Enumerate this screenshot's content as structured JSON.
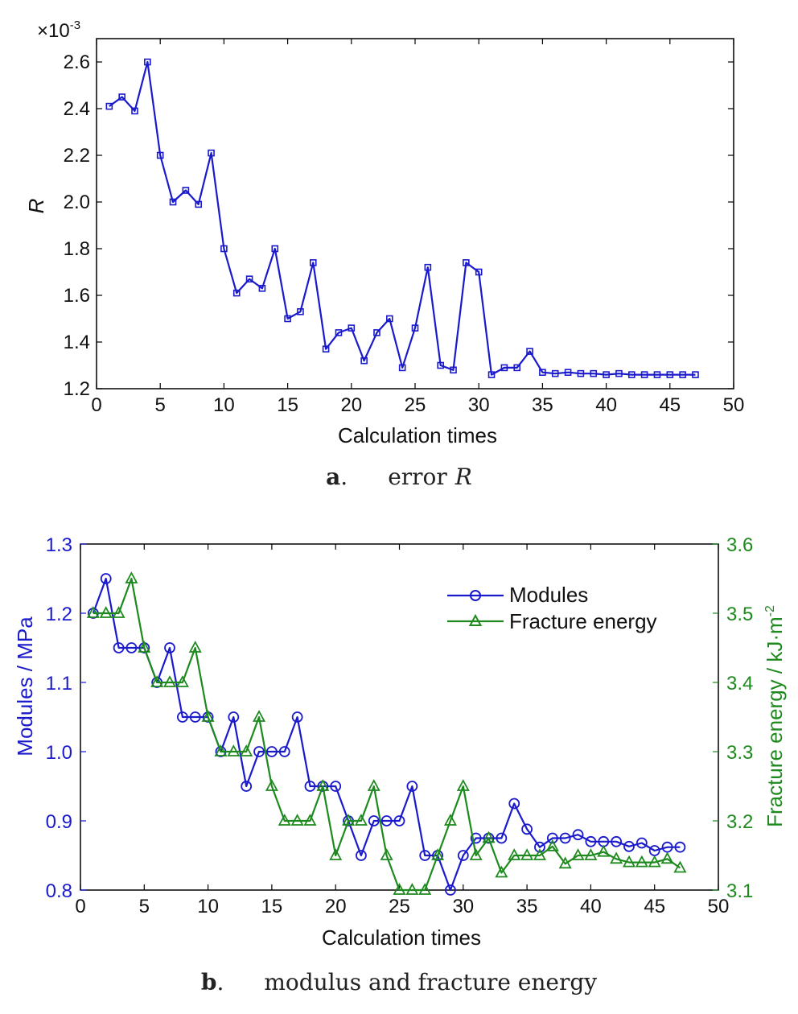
{
  "chart_data": [
    {
      "type": "line",
      "panel": "a",
      "caption_letter": "a",
      "caption_text": "error",
      "caption_var": "R",
      "xlabel": "Calculation times",
      "ylabel": "R",
      "y_multiplier": "×10",
      "y_multiplier_exp": "-3",
      "xlim": [
        0,
        50
      ],
      "ylim": [
        1.2,
        2.7
      ],
      "xticks": [
        0,
        5,
        10,
        15,
        20,
        25,
        30,
        35,
        40,
        45,
        50
      ],
      "yticks": [
        "1.2",
        "1.4",
        "1.6",
        "1.8",
        "2.0",
        "2.2",
        "2.4",
        "2.6"
      ],
      "grid": false,
      "series": [
        {
          "color": "#1a1acc",
          "marker": "square",
          "x": [
            1,
            2,
            3,
            4,
            5,
            6,
            7,
            8,
            9,
            10,
            11,
            12,
            13,
            14,
            15,
            16,
            17,
            18,
            19,
            20,
            21,
            22,
            23,
            24,
            25,
            26,
            27,
            28,
            29,
            30,
            31,
            32,
            33,
            34,
            35,
            36,
            37,
            38,
            39,
            40,
            41,
            42,
            43,
            44,
            45,
            46,
            47
          ],
          "values": [
            2.41,
            2.45,
            2.39,
            2.6,
            2.2,
            2.0,
            2.05,
            1.99,
            2.21,
            1.8,
            1.61,
            1.67,
            1.63,
            1.8,
            1.5,
            1.53,
            1.74,
            1.37,
            1.44,
            1.46,
            1.32,
            1.44,
            1.5,
            1.29,
            1.46,
            1.72,
            1.3,
            1.28,
            1.74,
            1.7,
            1.26,
            1.29,
            1.29,
            1.36,
            1.27,
            1.265,
            1.27,
            1.265,
            1.265,
            1.26,
            1.265,
            1.26,
            1.26,
            1.26,
            1.26,
            1.26,
            1.26
          ]
        }
      ]
    },
    {
      "type": "line",
      "panel": "b",
      "caption_letter": "b",
      "caption_text": "modulus and fracture energy",
      "xlabel": "Calculation times",
      "ylabel_left": "Modules / MPa",
      "ylabel_right": "Fracture energy / kJ·m",
      "ylabel_right_exp": "-2",
      "xlim": [
        0,
        50
      ],
      "ylim_left": [
        0.8,
        1.3
      ],
      "ylim_right": [
        3.1,
        3.6
      ],
      "xticks": [
        0,
        5,
        10,
        15,
        20,
        25,
        30,
        35,
        40,
        45,
        50
      ],
      "yticks_left": [
        "0.8",
        "0.9",
        "1.0",
        "1.1",
        "1.2",
        "1.3"
      ],
      "yticks_right": [
        "3.1",
        "3.2",
        "3.3",
        "3.4",
        "3.5",
        "3.6"
      ],
      "legend_position": "top-right",
      "grid": false,
      "series": [
        {
          "name": "Modules",
          "color": "#1a1acc",
          "marker": "circle",
          "axis": "left",
          "x": [
            1,
            2,
            3,
            4,
            5,
            6,
            7,
            8,
            9,
            10,
            11,
            12,
            13,
            14,
            15,
            16,
            17,
            18,
            19,
            20,
            21,
            22,
            23,
            24,
            25,
            26,
            27,
            28,
            29,
            30,
            31,
            32,
            33,
            34,
            35,
            36,
            37,
            38,
            39,
            40,
            41,
            42,
            43,
            44,
            45,
            46,
            47
          ],
          "values": [
            1.2,
            1.25,
            1.15,
            1.15,
            1.15,
            1.1,
            1.15,
            1.05,
            1.05,
            1.05,
            1.0,
            1.05,
            0.95,
            1.0,
            1.0,
            1.0,
            1.05,
            0.95,
            0.95,
            0.95,
            0.9,
            0.85,
            0.9,
            0.9,
            0.9,
            0.95,
            0.85,
            0.85,
            0.8,
            0.85,
            0.875,
            0.875,
            0.875,
            0.925,
            0.888,
            0.862,
            0.875,
            0.875,
            0.88,
            0.87,
            0.87,
            0.87,
            0.863,
            0.868,
            0.857,
            0.862,
            0.862
          ]
        },
        {
          "name": "Fracture energy",
          "color": "#1e8a1e",
          "marker": "triangle",
          "axis": "right",
          "x": [
            1,
            2,
            3,
            4,
            5,
            6,
            7,
            8,
            9,
            10,
            11,
            12,
            13,
            14,
            15,
            16,
            17,
            18,
            19,
            20,
            21,
            22,
            23,
            24,
            25,
            26,
            27,
            28,
            29,
            30,
            31,
            32,
            33,
            34,
            35,
            36,
            37,
            38,
            39,
            40,
            41,
            42,
            43,
            44,
            45,
            46,
            47
          ],
          "values": [
            3.5,
            3.5,
            3.5,
            3.55,
            3.45,
            3.4,
            3.4,
            3.4,
            3.45,
            3.35,
            3.3,
            3.3,
            3.3,
            3.35,
            3.25,
            3.2,
            3.2,
            3.2,
            3.25,
            3.15,
            3.2,
            3.2,
            3.25,
            3.15,
            3.1,
            3.1,
            3.1,
            3.15,
            3.2,
            3.25,
            3.15,
            3.175,
            3.125,
            3.15,
            3.15,
            3.15,
            3.163,
            3.138,
            3.15,
            3.15,
            3.155,
            3.145,
            3.14,
            3.14,
            3.14,
            3.145,
            3.132
          ]
        }
      ]
    }
  ]
}
